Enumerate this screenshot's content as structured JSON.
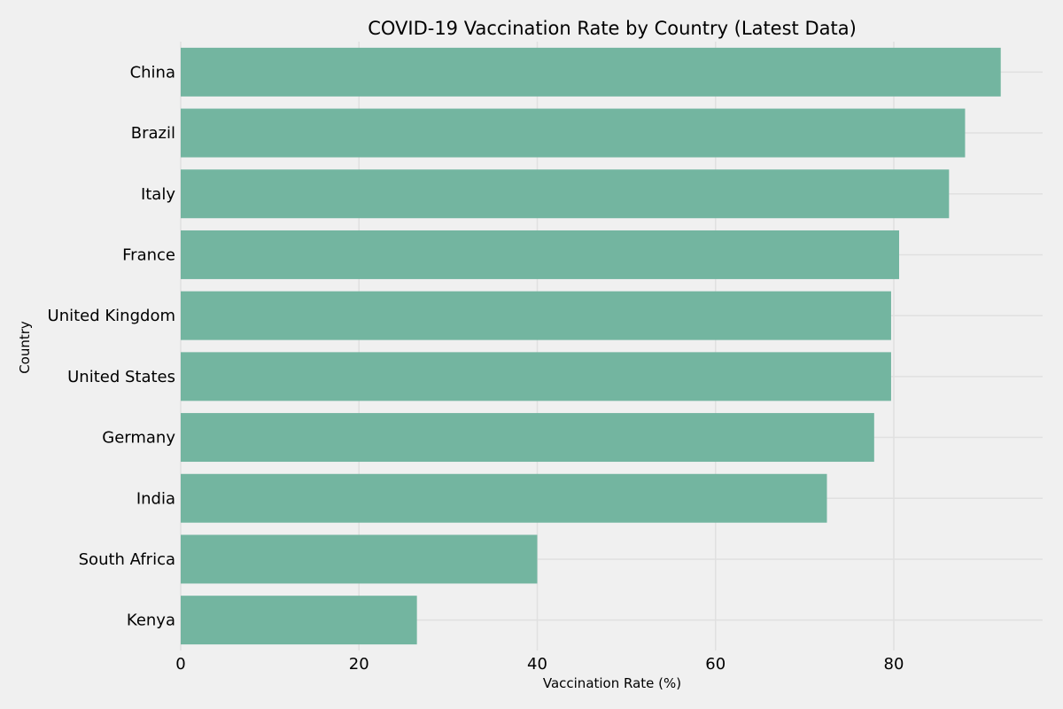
{
  "chart_data": {
    "type": "bar",
    "orientation": "horizontal",
    "title": "COVID-19 Vaccination Rate by Country (Latest Data)",
    "xlabel": "Vaccination Rate (%)",
    "ylabel": "Country",
    "categories": [
      "China",
      "Brazil",
      "Italy",
      "France",
      "United Kingdom",
      "United States",
      "Germany",
      "India",
      "South Africa",
      "Kenya"
    ],
    "values": [
      92.0,
      88.0,
      86.2,
      80.6,
      79.7,
      79.7,
      77.8,
      72.5,
      40.0,
      26.5
    ],
    "xlim": [
      0,
      96.7
    ],
    "xticks": [
      0,
      20,
      40,
      60,
      80
    ],
    "grid": true,
    "colors": {
      "bar": "#73b5a0",
      "background": "#f0f0f0",
      "grid": "#e0e0e0",
      "text": "#000000"
    }
  }
}
